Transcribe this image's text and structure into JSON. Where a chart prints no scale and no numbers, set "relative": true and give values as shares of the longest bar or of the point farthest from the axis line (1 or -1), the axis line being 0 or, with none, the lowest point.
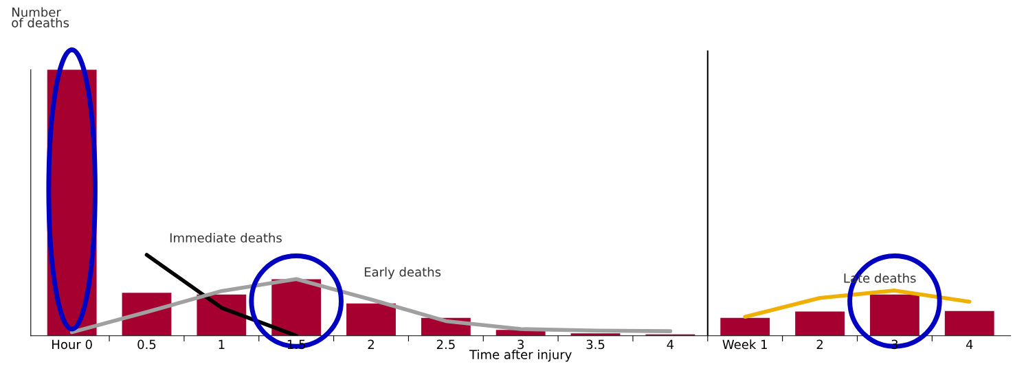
{
  "chart_data": {
    "type": "bar",
    "relative": true,
    "ylabel": "Number\nof deaths",
    "xlabel": "Time after injury",
    "categories": [
      "Hour 0",
      "0.5",
      "1",
      "1.5",
      "2",
      "2.5",
      "3",
      "3.5",
      "4",
      "Week 1",
      "2",
      "3",
      "4"
    ],
    "series": [
      {
        "color": "#a50030",
        "values": [
          1.0,
          0.161,
          0.155,
          0.212,
          0.121,
          0.067,
          0.022,
          0.009,
          0.005,
          0.067,
          0.091,
          0.155,
          0.093
        ]
      },
      {
        "type": "line",
        "name": "Immediate deaths",
        "color": "#000000",
        "values": [
          null,
          0.304,
          0.105,
          0.0,
          null,
          null,
          null,
          null,
          null,
          null,
          null,
          null,
          null
        ]
      },
      {
        "type": "line",
        "name": "Early deaths",
        "color": "#a0a0a0",
        "values": [
          0.013,
          0.089,
          0.168,
          0.213,
          0.136,
          0.055,
          0.025,
          0.019,
          0.017,
          null,
          null,
          null,
          null
        ]
      },
      {
        "type": "line",
        "name": "Late deaths",
        "color": "#f0b000",
        "values": [
          null,
          null,
          null,
          null,
          null,
          null,
          null,
          null,
          null,
          0.071,
          0.142,
          0.17,
          0.128
        ]
      }
    ],
    "grid": false,
    "legend": false
  }
}
